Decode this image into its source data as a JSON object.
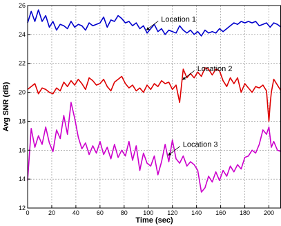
{
  "chart_data": {
    "type": "line",
    "xlabel": "Time (sec)",
    "ylabel": "Avg SNR (dB)",
    "xlim": [
      0,
      210
    ],
    "ylim": [
      12,
      26
    ],
    "xticks": [
      0,
      20,
      40,
      60,
      80,
      100,
      120,
      140,
      160,
      180,
      200
    ],
    "yticks": [
      12,
      14,
      16,
      18,
      20,
      22,
      24,
      26
    ],
    "grid": true,
    "series": [
      {
        "name": "Location 1",
        "color": "#0000cc",
        "x": [
          0,
          3,
          6,
          9,
          12,
          15,
          18,
          21,
          24,
          27,
          30,
          33,
          36,
          39,
          42,
          45,
          48,
          51,
          54,
          57,
          60,
          63,
          66,
          69,
          72,
          75,
          78,
          81,
          84,
          87,
          90,
          93,
          96,
          99,
          102,
          105,
          108,
          111,
          114,
          117,
          120,
          123,
          126,
          129,
          132,
          135,
          138,
          141,
          144,
          147,
          150,
          153,
          156,
          159,
          162,
          165,
          168,
          171,
          174,
          177,
          180,
          183,
          186,
          189,
          192,
          195,
          198,
          201,
          204,
          207,
          210
        ],
        "values": [
          24.8,
          25.6,
          24.9,
          25.7,
          24.9,
          25.3,
          24.5,
          24.9,
          24.3,
          24.7,
          24.6,
          24.4,
          24.9,
          24.5,
          24.7,
          24.6,
          24.3,
          24.8,
          24.6,
          24.7,
          24.8,
          25.2,
          24.5,
          25.0,
          24.9,
          25.3,
          25.1,
          24.8,
          24.9,
          24.6,
          24.8,
          24.4,
          24.6,
          24.1,
          24.4,
          24.7,
          24.2,
          24.4,
          24.0,
          24.3,
          24.2,
          24.1,
          24.6,
          24.3,
          24.1,
          24.3,
          24.0,
          24.2,
          23.9,
          24.3,
          24.1,
          24.2,
          24.1,
          24.4,
          24.2,
          24.4,
          24.6,
          24.8,
          24.7,
          24.9,
          24.8,
          24.9,
          24.8,
          24.9,
          24.6,
          24.7,
          24.8,
          24.5,
          24.8,
          24.7,
          24.5
        ]
      },
      {
        "name": "Location 2",
        "color": "#dd0000",
        "x": [
          0,
          3,
          6,
          9,
          12,
          15,
          18,
          21,
          24,
          27,
          30,
          33,
          36,
          39,
          42,
          45,
          48,
          51,
          54,
          57,
          60,
          63,
          66,
          69,
          72,
          75,
          78,
          81,
          84,
          87,
          90,
          93,
          96,
          99,
          102,
          105,
          108,
          111,
          114,
          117,
          120,
          123,
          126,
          129,
          132,
          135,
          138,
          141,
          144,
          147,
          150,
          153,
          156,
          159,
          162,
          165,
          168,
          171,
          174,
          177,
          180,
          183,
          186,
          189,
          192,
          195,
          198,
          200,
          201,
          202,
          204,
          207,
          210
        ],
        "values": [
          20.2,
          20.4,
          20.6,
          19.9,
          20.3,
          20.2,
          20.0,
          19.9,
          20.3,
          20.1,
          20.7,
          20.4,
          20.8,
          20.5,
          20.9,
          20.6,
          20.2,
          21.0,
          20.8,
          20.5,
          20.6,
          20.9,
          20.4,
          20.1,
          20.7,
          20.9,
          21.1,
          20.6,
          20.3,
          20.5,
          20.1,
          20.3,
          20.0,
          20.5,
          20.2,
          20.6,
          20.4,
          20.8,
          20.6,
          20.7,
          20.2,
          20.5,
          19.3,
          21.6,
          21.0,
          21.3,
          21.0,
          21.4,
          21.1,
          21.7,
          21.6,
          21.2,
          21.6,
          21.5,
          20.8,
          20.4,
          21.0,
          20.6,
          21.0,
          20.0,
          20.6,
          20.3,
          20.0,
          20.4,
          20.3,
          20.5,
          20.1,
          18.0,
          19.2,
          20.0,
          20.9,
          20.5,
          20.1
        ]
      },
      {
        "name": "Location 3",
        "color": "#cc00cc",
        "x": [
          0,
          3,
          6,
          9,
          12,
          15,
          18,
          21,
          24,
          27,
          30,
          33,
          36,
          39,
          42,
          45,
          48,
          51,
          54,
          57,
          60,
          63,
          66,
          69,
          72,
          75,
          78,
          81,
          84,
          87,
          90,
          93,
          96,
          99,
          102,
          105,
          108,
          111,
          114,
          117,
          120,
          123,
          126,
          129,
          132,
          135,
          138,
          141,
          144,
          147,
          150,
          153,
          156,
          159,
          162,
          165,
          168,
          171,
          174,
          177,
          180,
          183,
          186,
          189,
          192,
          195,
          198,
          200,
          202,
          204,
          207,
          210
        ],
        "values": [
          13.9,
          17.5,
          16.2,
          17.0,
          16.4,
          17.6,
          16.5,
          15.9,
          17.4,
          16.8,
          18.4,
          17.1,
          19.3,
          18.2,
          16.9,
          16.1,
          16.5,
          15.7,
          16.3,
          15.8,
          16.6,
          15.7,
          16.2,
          15.4,
          16.4,
          15.5,
          16.0,
          15.6,
          16.6,
          15.3,
          16.3,
          14.6,
          15.8,
          15.1,
          14.9,
          15.6,
          14.3,
          15.2,
          16.4,
          15.2,
          16.7,
          15.4,
          15.1,
          15.6,
          14.9,
          15.2,
          15.0,
          14.6,
          13.1,
          13.4,
          14.2,
          13.8,
          14.5,
          13.9,
          14.6,
          14.2,
          14.9,
          14.5,
          15.0,
          14.7,
          15.5,
          15.6,
          16.0,
          15.8,
          16.4,
          17.4,
          17.1,
          17.6,
          16.2,
          16.6,
          16.0,
          15.9
        ]
      }
    ],
    "annotations": [
      {
        "text": "Location 1",
        "series": 0,
        "x": 98
      },
      {
        "text": "Location 2",
        "series": 1,
        "x": 128
      },
      {
        "text": "Location 3",
        "series": 2,
        "x": 116
      }
    ]
  }
}
